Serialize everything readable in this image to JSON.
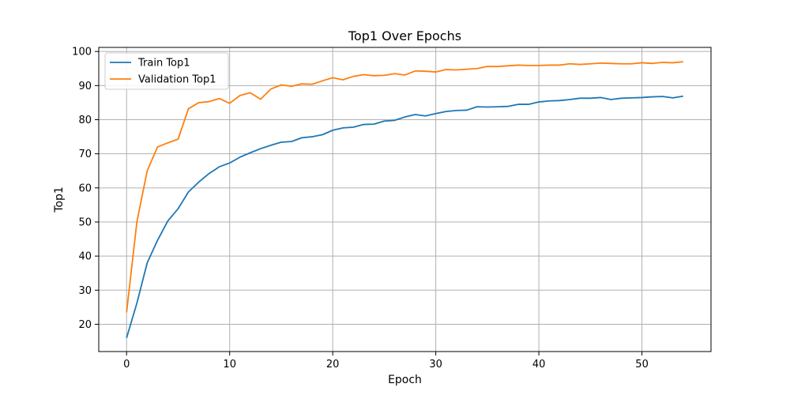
{
  "chart_data": {
    "type": "line",
    "title": "Top1 Over Epochs",
    "xlabel": "Epoch",
    "ylabel": "Top1",
    "xlim": [
      -2.7,
      56.7
    ],
    "ylim": [
      12,
      101.2
    ],
    "xticks": [
      0,
      10,
      20,
      30,
      40,
      50
    ],
    "yticks": [
      20,
      30,
      40,
      50,
      60,
      70,
      80,
      90,
      100
    ],
    "grid": true,
    "legend_position": "top-left",
    "series": [
      {
        "name": "Train Top1",
        "color": "#1f77b4",
        "x": [
          0,
          1,
          2,
          3,
          4,
          5,
          6,
          7,
          8,
          9,
          10,
          11,
          12,
          13,
          14,
          15,
          16,
          17,
          18,
          19,
          20,
          21,
          22,
          23,
          24,
          25,
          26,
          27,
          28,
          29,
          30,
          31,
          32,
          33,
          34,
          35,
          36,
          37,
          38,
          39,
          40,
          41,
          42,
          43,
          44,
          45,
          46,
          47,
          48,
          49,
          50,
          51,
          52,
          53,
          54
        ],
        "values": [
          16.0,
          26.2,
          38.0,
          44.6,
          50.3,
          53.9,
          58.8,
          61.7,
          64.2,
          66.2,
          67.3,
          69.0,
          70.3,
          71.5,
          72.5,
          73.4,
          73.6,
          74.7,
          75.0,
          75.6,
          76.9,
          77.6,
          77.8,
          78.6,
          78.7,
          79.6,
          79.8,
          80.8,
          81.5,
          81.1,
          81.8,
          82.4,
          82.7,
          82.8,
          83.8,
          83.7,
          83.8,
          83.9,
          84.5,
          84.5,
          85.2,
          85.5,
          85.6,
          85.9,
          86.3,
          86.3,
          86.5,
          85.9,
          86.3,
          86.4,
          86.5,
          86.7,
          86.8,
          86.4,
          86.9
        ]
      },
      {
        "name": "Validation Top1",
        "color": "#ff7f0e",
        "x": [
          0,
          1,
          2,
          3,
          4,
          5,
          6,
          7,
          8,
          9,
          10,
          11,
          12,
          13,
          14,
          15,
          16,
          17,
          18,
          19,
          20,
          21,
          22,
          23,
          24,
          25,
          26,
          27,
          28,
          29,
          30,
          31,
          32,
          33,
          34,
          35,
          36,
          37,
          38,
          39,
          40,
          41,
          42,
          43,
          44,
          45,
          46,
          47,
          48,
          49,
          50,
          51,
          52,
          53,
          54
        ],
        "values": [
          23.5,
          50.0,
          65.0,
          72.0,
          73.2,
          74.3,
          83.2,
          85.0,
          85.3,
          86.2,
          84.8,
          87.1,
          87.9,
          86.0,
          89.0,
          90.2,
          89.8,
          90.5,
          90.4,
          91.4,
          92.3,
          91.7,
          92.7,
          93.2,
          92.9,
          93.0,
          93.5,
          93.1,
          94.3,
          94.2,
          94.0,
          94.7,
          94.6,
          94.8,
          95.0,
          95.6,
          95.6,
          95.8,
          96.0,
          95.9,
          95.9,
          96.0,
          96.0,
          96.4,
          96.2,
          96.4,
          96.6,
          96.5,
          96.4,
          96.4,
          96.7,
          96.5,
          96.8,
          96.7,
          97.0
        ]
      }
    ]
  }
}
